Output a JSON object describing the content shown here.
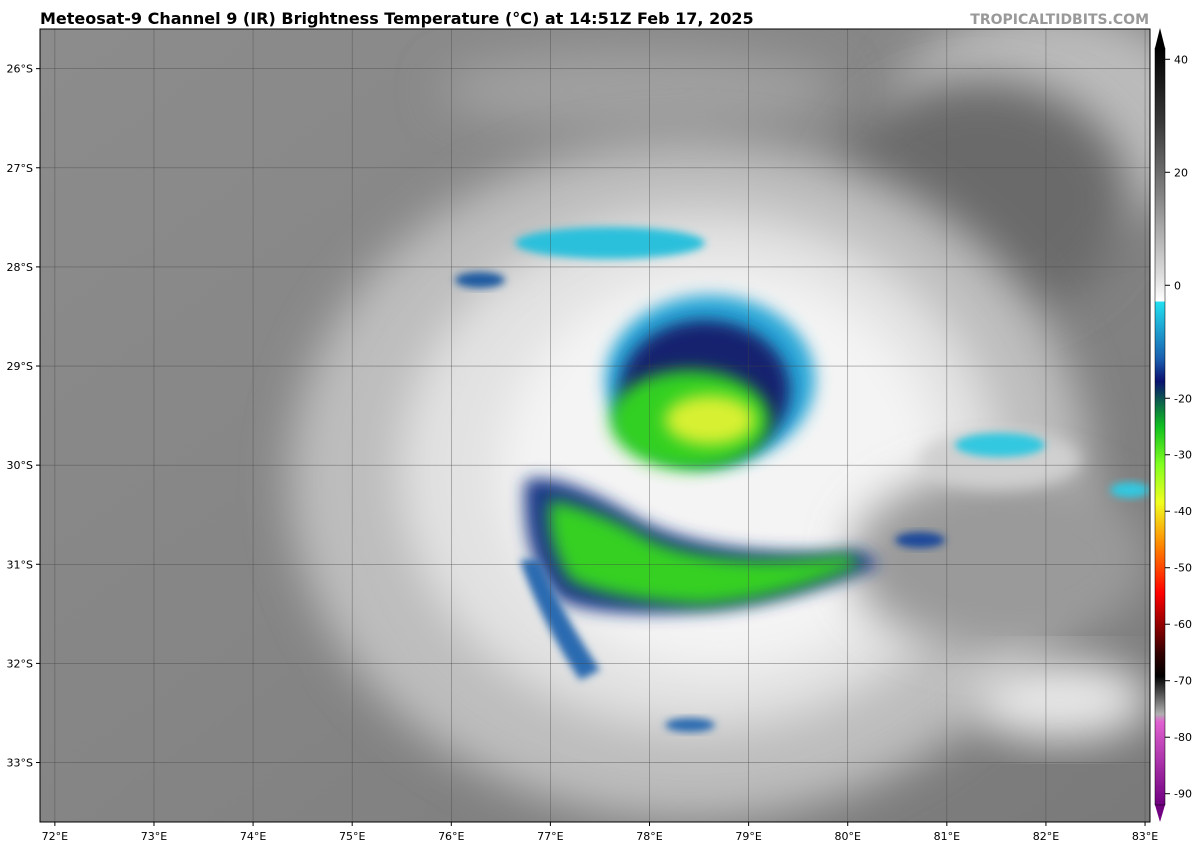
{
  "title": "Meteosat-9 Channel 9 (IR) Brightness Temperature (°C) at 14:51Z Feb 17, 2025",
  "watermark": "TROPICALTIDBITS.COM",
  "map": {
    "lon_range": [
      71.85,
      83.05
    ],
    "lat_range": [
      -33.6,
      -25.6
    ],
    "lon_ticks": [
      {
        "value": 72,
        "label": "72°E"
      },
      {
        "value": 73,
        "label": "73°E"
      },
      {
        "value": 74,
        "label": "74°E"
      },
      {
        "value": 75,
        "label": "75°E"
      },
      {
        "value": 76,
        "label": "76°E"
      },
      {
        "value": 77,
        "label": "77°E"
      },
      {
        "value": 78,
        "label": "78°E"
      },
      {
        "value": 79,
        "label": "79°E"
      },
      {
        "value": 80,
        "label": "80°E"
      },
      {
        "value": 81,
        "label": "81°E"
      },
      {
        "value": 82,
        "label": "82°E"
      },
      {
        "value": 83,
        "label": "83°E"
      }
    ],
    "lat_ticks": [
      {
        "value": -26,
        "label": "26°S"
      },
      {
        "value": -27,
        "label": "27°S"
      },
      {
        "value": -28,
        "label": "28°S"
      },
      {
        "value": -29,
        "label": "29°S"
      },
      {
        "value": -30,
        "label": "30°S"
      },
      {
        "value": -31,
        "label": "31°S"
      },
      {
        "value": -32,
        "label": "32°S"
      },
      {
        "value": -33,
        "label": "33°S"
      }
    ]
  },
  "colorbar": {
    "lim": [
      -92,
      42
    ],
    "ticks": [
      40,
      20,
      0,
      -20,
      -30,
      -40,
      -50,
      -60,
      -70,
      -80,
      -90
    ]
  }
}
